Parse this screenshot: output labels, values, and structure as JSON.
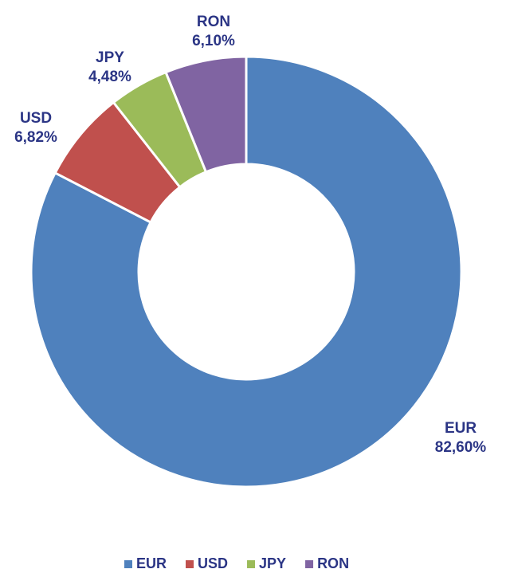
{
  "chart_data": {
    "type": "donut",
    "categories": [
      "EUR",
      "USD",
      "JPY",
      "RON"
    ],
    "values": [
      82.6,
      6.82,
      4.48,
      6.1
    ],
    "value_labels": [
      "82,60%",
      "6,82%",
      "4,48%",
      "6,10%"
    ],
    "colors": [
      "#4f81bd",
      "#c0504d",
      "#9bbb59",
      "#8064a2"
    ],
    "legend": "bottom"
  }
}
